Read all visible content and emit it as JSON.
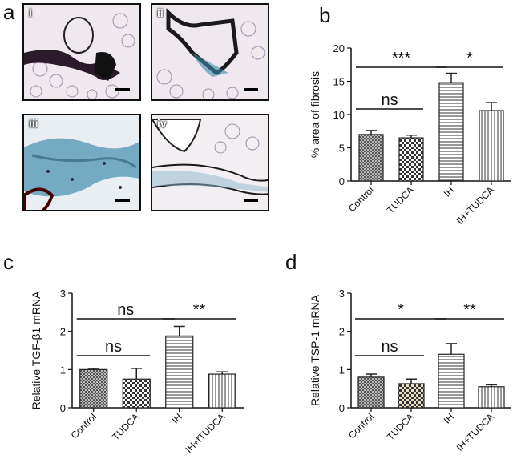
{
  "panels": {
    "a": "a",
    "b": "b",
    "c": "c",
    "d": "d"
  },
  "micrographs": [
    {
      "label": "i"
    },
    {
      "label": "ii"
    },
    {
      "label": "iii"
    },
    {
      "label": "iv"
    }
  ],
  "chart_data": [
    {
      "type": "bar",
      "panel": "b",
      "categories": [
        "Control",
        "TUDCA",
        "IH",
        "IH+TUDCA"
      ],
      "values": [
        7.0,
        6.5,
        14.8,
        10.6
      ],
      "errors": [
        0.6,
        0.4,
        1.4,
        1.2
      ],
      "ylabel": "% area of fibrosis",
      "ylim": [
        0,
        20
      ],
      "yticks": [
        "0",
        "5",
        "10",
        "15",
        "20"
      ],
      "significance": [
        {
          "from": 0,
          "to": 1,
          "label": "ns"
        },
        {
          "from": 0,
          "to": 2,
          "label": "***"
        },
        {
          "from": 2,
          "to": 3,
          "label": "*"
        }
      ],
      "patterns": [
        "dense-checker",
        "checker",
        "horizontal",
        "vertical"
      ]
    },
    {
      "type": "bar",
      "panel": "c",
      "categories": [
        "Control",
        "TUDCA",
        "IH",
        "IH+tTUDCA"
      ],
      "values": [
        1.0,
        0.75,
        1.88,
        0.88
      ],
      "errors": [
        0.03,
        0.28,
        0.25,
        0.06
      ],
      "ylabel": "Relative TGF-β1 mRNA",
      "ylim": [
        0,
        3
      ],
      "yticks": [
        "0",
        "1",
        "2",
        "3"
      ],
      "significance": [
        {
          "from": 0,
          "to": 1,
          "label": "ns"
        },
        {
          "from": 0,
          "to": 2,
          "label": "ns"
        },
        {
          "from": 2,
          "to": 3,
          "label": "**"
        }
      ],
      "patterns": [
        "dense-checker",
        "checker",
        "horizontal",
        "vertical"
      ]
    },
    {
      "type": "bar",
      "panel": "d",
      "categories": [
        "Control",
        "TUDCA",
        "IH",
        "IH+TUDCA"
      ],
      "values": [
        0.8,
        0.63,
        1.4,
        0.55
      ],
      "errors": [
        0.08,
        0.12,
        0.28,
        0.05
      ],
      "ylabel": "Relative TSP-1 mRNA",
      "ylim": [
        0,
        3
      ],
      "yticks": [
        "0",
        "1",
        "2",
        "3"
      ],
      "significance": [
        {
          "from": 0,
          "to": 1,
          "label": "ns"
        },
        {
          "from": 0,
          "to": 2,
          "label": "*"
        },
        {
          "from": 2,
          "to": 3,
          "label": "**"
        }
      ],
      "patterns": [
        "dense-checker",
        "checker-tan",
        "horizontal",
        "vertical"
      ]
    }
  ]
}
